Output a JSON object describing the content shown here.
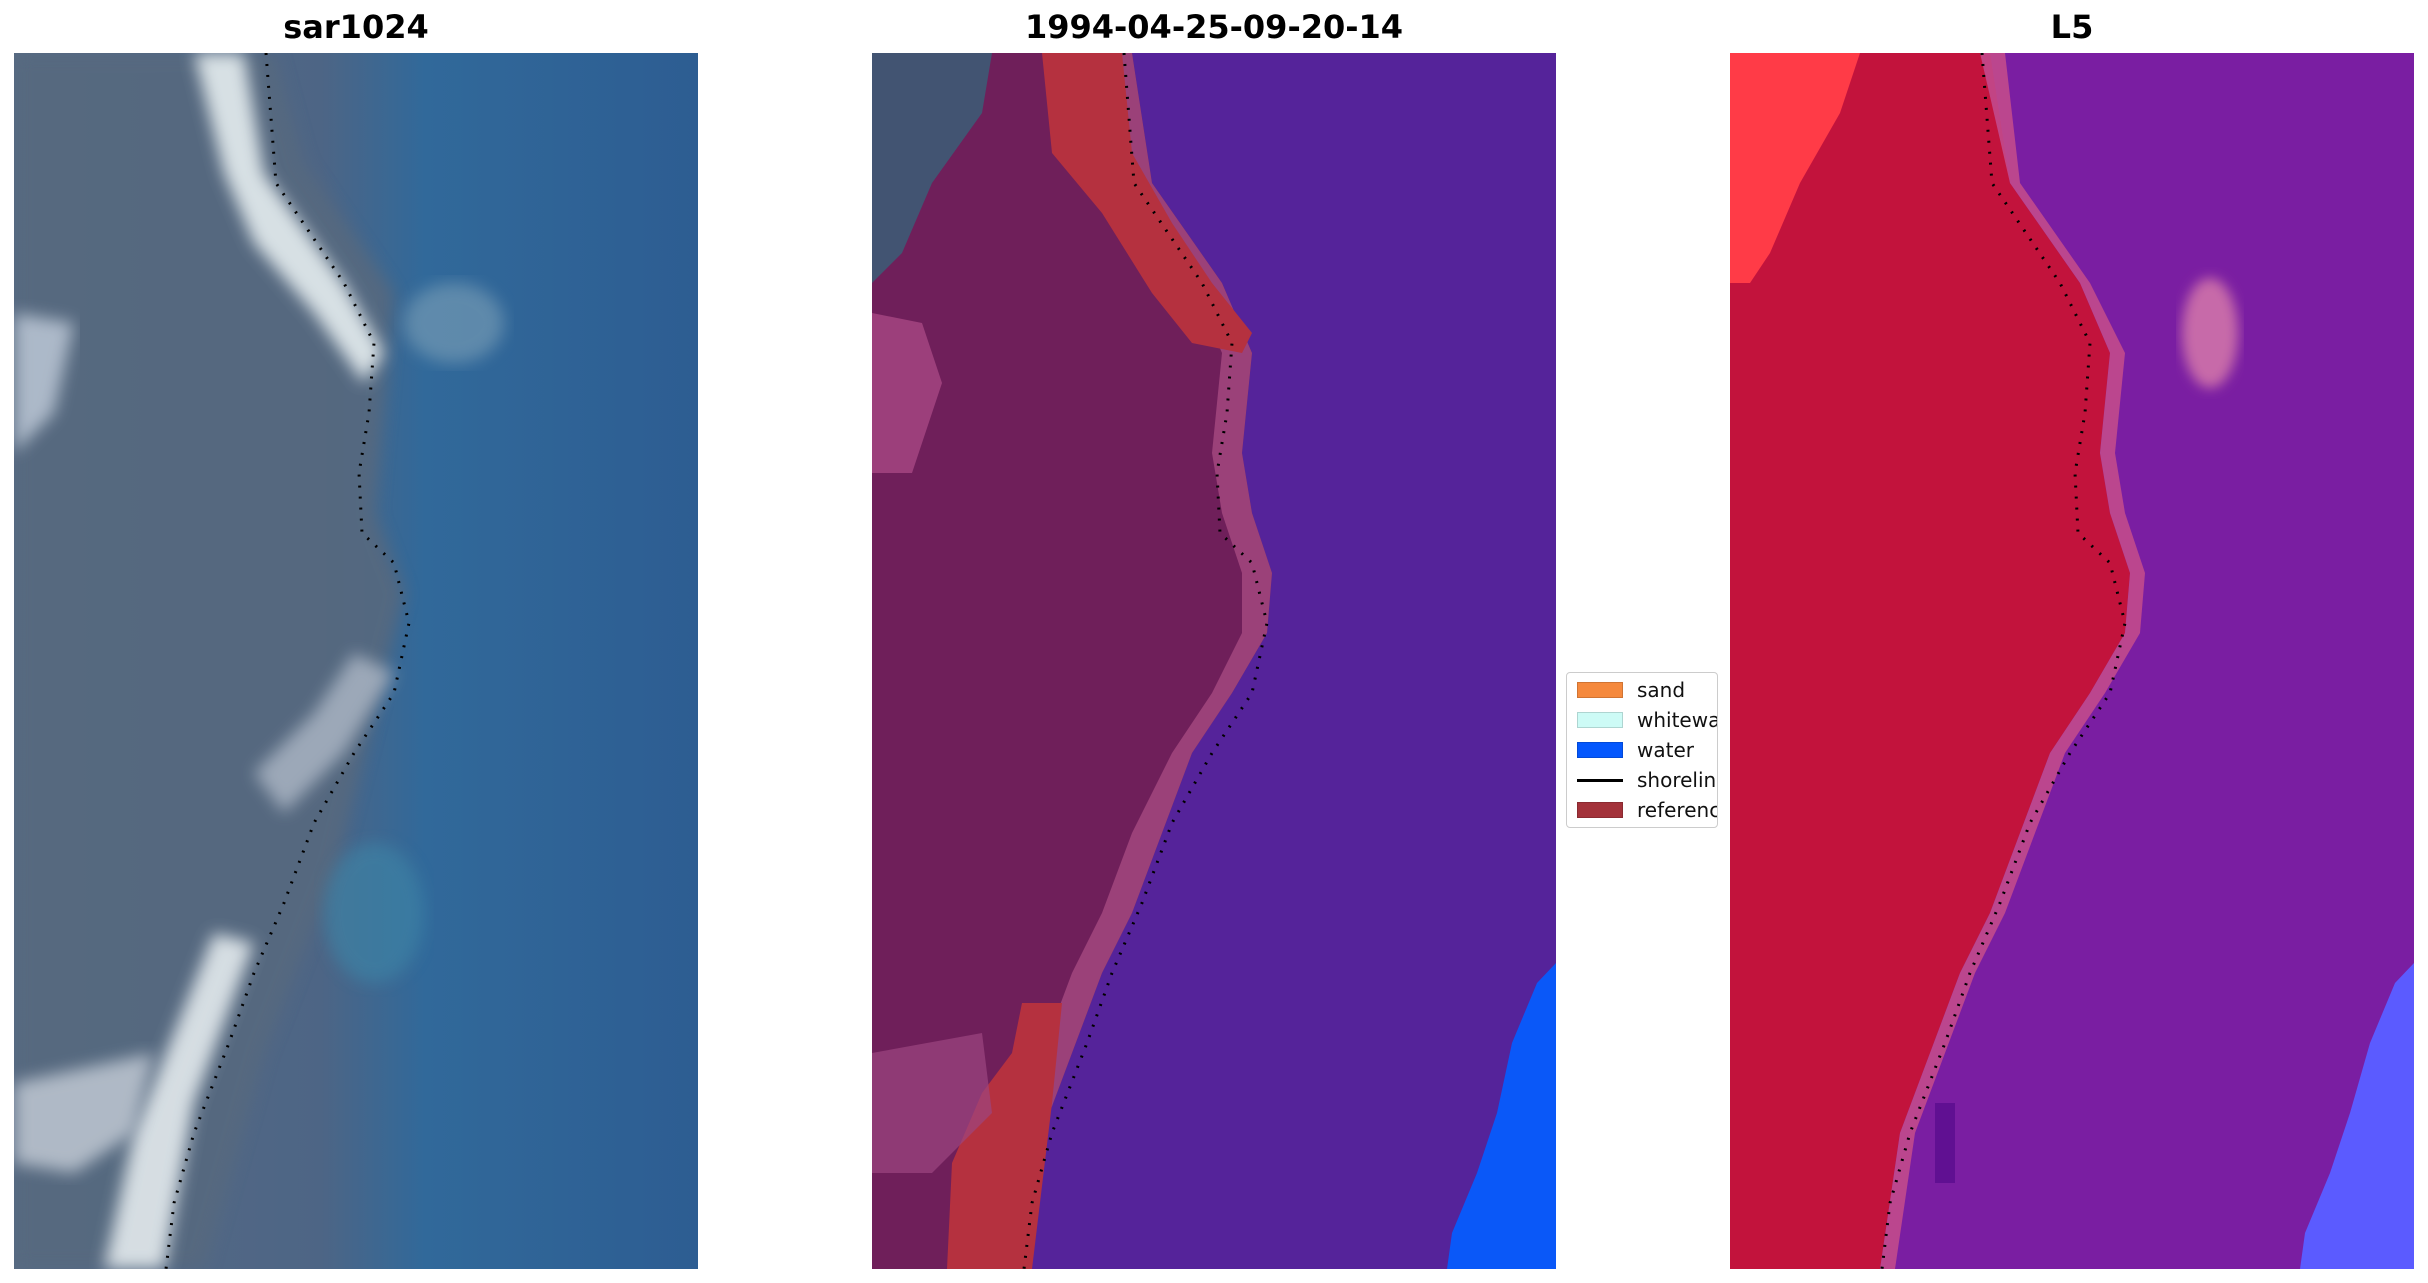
{
  "panels": [
    {
      "title": "sar1024"
    },
    {
      "title": "1994-04-25-09-20-14"
    },
    {
      "title": "L5"
    }
  ],
  "legend": {
    "items": [
      {
        "label": "sand",
        "color": "#f5893d",
        "kind": "patch"
      },
      {
        "label": "whitewater",
        "color": "#cdfbf6",
        "kind": "patch"
      },
      {
        "label": "water",
        "color": "#0357fd",
        "kind": "patch"
      },
      {
        "label": "shoreline",
        "color": "#000000",
        "kind": "line"
      },
      {
        "label": "reference",
        "color": "#a3323a",
        "kind": "patch"
      }
    ]
  },
  "colors": {
    "sar_land": "#566a82",
    "sar_water": "#2f6496",
    "sar_surf": "#dfe7ea",
    "class_water": "#55239a",
    "class_land": "#6f1f5a",
    "class_reference": "#b5313f",
    "class_bright_water": "#0a58f8",
    "l5_land": "#c2133c",
    "l5_water": "#7a1ea2",
    "l5_bright_water": "#5b5bff"
  }
}
